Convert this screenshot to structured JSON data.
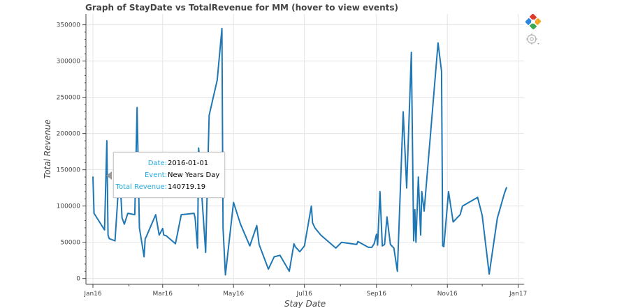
{
  "chart_data": {
    "type": "line",
    "title": "Graph of StayDate vs TotalRevenue for MM (hover to view events)",
    "xlabel": "Stay Date",
    "ylabel": "Total Revenue",
    "x_ticks": [
      {
        "label": "Jan16",
        "value": "2016-01-01"
      },
      {
        "label": "Mar16",
        "value": "2016-03-01"
      },
      {
        "label": "May16",
        "value": "2016-05-01"
      },
      {
        "label": "Jul16",
        "value": "2016-07-01"
      },
      {
        "label": "Sep16",
        "value": "2016-09-01"
      },
      {
        "label": "Nov16",
        "value": "2016-11-01"
      },
      {
        "label": "Jan17",
        "value": "2017-01-01"
      }
    ],
    "y_ticks": [
      0,
      50000,
      100000,
      150000,
      200000,
      250000,
      300000,
      350000
    ],
    "xlim": [
      "2015-12-26",
      "2017-01-06"
    ],
    "ylim": [
      -8000,
      365000
    ],
    "grid": true,
    "line_color": "#1f77b4",
    "series": [
      {
        "x": [
          "2016-01-01",
          "2016-01-02",
          "2016-01-11",
          "2016-01-13",
          "2016-01-14",
          "2016-01-15",
          "2016-01-20",
          "2016-01-24",
          "2016-01-26",
          "2016-01-28",
          "2016-01-31",
          "2016-02-06",
          "2016-02-08",
          "2016-02-10",
          "2016-02-14",
          "2016-02-15",
          "2016-02-16",
          "2016-02-24",
          "2016-02-27",
          "2016-03-01",
          "2016-03-02",
          "2016-03-04",
          "2016-03-12",
          "2016-03-17",
          "2016-03-28",
          "2016-03-29",
          "2016-03-31",
          "2016-04-01",
          "2016-04-07",
          "2016-04-10",
          "2016-04-17",
          "2016-04-21",
          "2016-04-22",
          "2016-04-24",
          "2016-05-01",
          "2016-05-07",
          "2016-05-15",
          "2016-05-21",
          "2016-05-23",
          "2016-05-31",
          "2016-06-05",
          "2016-06-10",
          "2016-06-18",
          "2016-06-22",
          "2016-06-23",
          "2016-06-27",
          "2016-07-01",
          "2016-07-07",
          "2016-07-08",
          "2016-07-10",
          "2016-07-15",
          "2016-07-28",
          "2016-08-02",
          "2016-08-15",
          "2016-08-16",
          "2016-08-25",
          "2016-08-28",
          "2016-08-30",
          "2016-09-01",
          "2016-09-02",
          "2016-09-04",
          "2016-09-06",
          "2016-09-08",
          "2016-09-10",
          "2016-09-13",
          "2016-09-16",
          "2016-09-19",
          "2016-09-24",
          "2016-09-27",
          "2016-10-01",
          "2016-10-03",
          "2016-10-04",
          "2016-10-05",
          "2016-10-07",
          "2016-10-09",
          "2016-10-10",
          "2016-10-12",
          "2016-10-24",
          "2016-10-27",
          "2016-10-28",
          "2016-10-29",
          "2016-11-02",
          "2016-11-06",
          "2016-11-12",
          "2016-11-14",
          "2016-11-27",
          "2016-12-01",
          "2016-12-07",
          "2016-12-14",
          "2016-12-20",
          "2016-12-22"
        ],
        "y": [
          140719.19,
          90000,
          67000,
          190000,
          60000,
          55000,
          52000,
          150000,
          84000,
          75000,
          90000,
          88000,
          236000,
          70000,
          30000,
          55000,
          58000,
          88000,
          60000,
          69000,
          60000,
          59000,
          48000,
          88000,
          90000,
          83000,
          42000,
          180000,
          36000,
          225000,
          274000,
          345000,
          70000,
          5000,
          105000,
          75000,
          45000,
          73000,
          47000,
          13000,
          30000,
          32000,
          10000,
          48000,
          44000,
          37000,
          45000,
          100000,
          77000,
          70000,
          60000,
          42000,
          50000,
          47000,
          51000,
          43000,
          43000,
          48000,
          61000,
          46000,
          120000,
          45000,
          47000,
          85000,
          47000,
          42000,
          10000,
          230000,
          125000,
          312000,
          52000,
          95000,
          50000,
          140000,
          60000,
          120000,
          93000,
          325000,
          286000,
          45000,
          44000,
          120000,
          78000,
          88000,
          100000,
          112000,
          87000,
          6000,
          83000,
          117000,
          126000
        ]
      }
    ]
  },
  "tooltip": {
    "date_label": "Date:",
    "date_value": "2016-01-01",
    "event_label": "Event:",
    "event_value": "New Years Day",
    "revenue_label": "Total Revenue:",
    "revenue_value": "140719.19"
  },
  "toolbar": {
    "tools": [
      "bokeh-logo-icon",
      "hover-tool-icon"
    ]
  }
}
